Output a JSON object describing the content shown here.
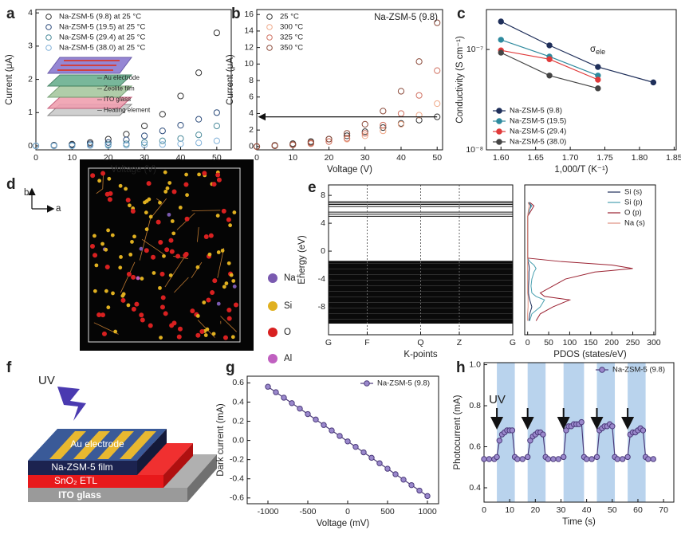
{
  "chart_data": [
    {
      "type": "scatter",
      "panel_label": "a",
      "x_label": "Voltage (V)",
      "y_label": "Current (μA)",
      "xlim": [
        0,
        54
      ],
      "ylim": [
        -0.12,
        4.1
      ],
      "xticks": [
        0,
        10,
        20,
        30,
        40,
        50
      ],
      "yticks": [
        0,
        1,
        2,
        3,
        4
      ],
      "legend": "upper left",
      "marker": "open",
      "x": [
        0,
        5,
        10,
        15,
        20,
        25,
        30,
        35,
        40,
        45,
        50
      ],
      "series": [
        {
          "name": "Na-ZSM-5 (9.8) at 25 °C",
          "color": "#333333",
          "values": [
            0,
            0.02,
            0.05,
            0.1,
            0.2,
            0.35,
            0.6,
            0.95,
            1.5,
            2.2,
            3.4
          ]
        },
        {
          "name": "Na-ZSM-5 (19.5) at 25 °C",
          "color": "#2b4a7a",
          "values": [
            0,
            0.01,
            0.03,
            0.06,
            0.1,
            0.18,
            0.3,
            0.45,
            0.62,
            0.8,
            1.0
          ]
        },
        {
          "name": "Na-ZSM-5 (29.4) at 25 °C",
          "color": "#4a8a9a",
          "values": [
            0,
            0,
            0.01,
            0.02,
            0.04,
            0.06,
            0.1,
            0.15,
            0.22,
            0.33,
            0.6
          ]
        },
        {
          "name": "Na-ZSM-5 (38.0) at 25 °C",
          "color": "#7fb0d8",
          "values": [
            0,
            0,
            0,
            0.01,
            0.01,
            0.02,
            0.03,
            0.04,
            0.06,
            0.09,
            0.15
          ]
        }
      ],
      "inset_labels": [
        "Au electrode",
        "Zeolite film",
        "ITO glass",
        "Heating element"
      ]
    },
    {
      "type": "scatter",
      "panel_label": "b",
      "x_label": "Voltage (V)",
      "y_label": "Current (μA)",
      "xlim": [
        0,
        51.5
      ],
      "ylim": [
        -0.4,
        16.6
      ],
      "xticks": [
        0,
        10,
        20,
        30,
        40,
        50
      ],
      "yticks": [
        0,
        2,
        4,
        6,
        8,
        10,
        12,
        14,
        16
      ],
      "legend": "upper left",
      "marker": "open",
      "annotation": "Na-ZSM-5 (9.8)",
      "arrow_level": 3.6,
      "x": [
        0,
        5,
        10,
        15,
        20,
        25,
        30,
        35,
        40,
        45,
        50
      ],
      "series": [
        {
          "name": "25 °C",
          "color": "#333333",
          "values": [
            0,
            0.15,
            0.35,
            0.6,
            0.9,
            1.3,
            1.8,
            2.3,
            2.8,
            3.2,
            3.6
          ]
        },
        {
          "name": "300 °C",
          "color": "#f0a888",
          "values": [
            0,
            0.1,
            0.25,
            0.4,
            0.6,
            0.9,
            1.3,
            1.9,
            2.7,
            3.8,
            5.2
          ]
        },
        {
          "name": "325 °C",
          "color": "#d07060",
          "values": [
            0,
            0.1,
            0.2,
            0.35,
            0.6,
            1.0,
            1.6,
            2.6,
            4.0,
            6.2,
            9.2
          ]
        },
        {
          "name": "350 °C",
          "color": "#8b4a3a",
          "values": [
            0,
            0.1,
            0.25,
            0.5,
            0.9,
            1.6,
            2.7,
            4.3,
            6.7,
            10.3,
            15
          ]
        }
      ]
    },
    {
      "type": "line",
      "panel_label": "c",
      "x_label": "1,000/T (K⁻¹)",
      "y_label": "Conductivity (S cm⁻¹)",
      "xlim": [
        1.579,
        1.853
      ],
      "ylim": [
        1e-08,
        2.5e-07
      ],
      "yscale": "log",
      "legend": "lower left",
      "marker": "filled",
      "annotation": "σ",
      "annotation_sub": "ele",
      "xticks": [
        {
          "value": 1.6,
          "label": "1.60"
        },
        {
          "value": 1.65,
          "label": "1.65"
        },
        {
          "value": 1.7,
          "label": "1.70"
        },
        {
          "value": 1.75,
          "label": "1.75"
        },
        {
          "value": 1.8,
          "label": "1.80"
        },
        {
          "value": 1.85,
          "label": "1.85"
        }
      ],
      "yticks": [
        {
          "value": 1e-08,
          "label": "10⁻⁸"
        },
        {
          "value": 1e-07,
          "label": "10⁻⁷"
        }
      ],
      "series": [
        {
          "name": "Na-ZSM-5 (9.8)",
          "color": "#1f2f5a",
          "x": [
            1.6,
            1.67,
            1.74,
            1.82
          ],
          "values": [
            1.9e-07,
            1.1e-07,
            6.7e-08,
            4.7e-08
          ]
        },
        {
          "name": "Na-ZSM-5 (19.5)",
          "color": "#2e8a9e",
          "x": [
            1.6,
            1.67,
            1.74
          ],
          "values": [
            1.25e-07,
            8.5e-08,
            5.5e-08
          ]
        },
        {
          "name": "Na-ZSM-5 (29.4)",
          "color": "#e03a3a",
          "x": [
            1.6,
            1.67,
            1.74
          ],
          "values": [
            9.8e-08,
            8e-08,
            5e-08
          ]
        },
        {
          "name": "Na-ZSM-5 (38.0)",
          "color": "#444444",
          "x": [
            1.6,
            1.67,
            1.74
          ],
          "values": [
            9.3e-08,
            5.5e-08,
            4.1e-08
          ]
        }
      ]
    },
    {
      "type": "band",
      "panel_label": "e",
      "x_label": "K-points",
      "y_label": "Energy (eV)",
      "xlim": [
        0,
        1
      ],
      "ylim": [
        -12,
        9.5
      ],
      "yticks": [
        -8,
        -4,
        0,
        4,
        8
      ],
      "xticks": [
        {
          "value": 0,
          "label": "G"
        },
        {
          "value": 0.21,
          "label": "F"
        },
        {
          "value": 0.5,
          "label": "Q"
        },
        {
          "value": 0.71,
          "label": "Z"
        },
        {
          "value": 1,
          "label": "G"
        }
      ],
      "conduction_bands": [
        5.0,
        5.3,
        5.6,
        6.4,
        6.7,
        6.9,
        7.1
      ],
      "valence_band": {
        "top": -1.4,
        "bottom": -10.4
      }
    },
    {
      "type": "line",
      "orientation": "horizontal",
      "x_label": "PDOS (states/eV)",
      "xlim": [
        -7,
        304
      ],
      "ylim": [
        -12,
        9.5
      ],
      "xticks": [
        0,
        50,
        100,
        150,
        200,
        250,
        300
      ],
      "legend": "upper right",
      "y": [
        -10,
        -9,
        -8,
        -7,
        -6.5,
        -6,
        -5,
        -4,
        -3,
        -2.5,
        -2,
        -1.5,
        -1,
        0,
        4,
        5,
        6,
        6.5,
        7
      ],
      "series": [
        {
          "name": "Si (s)",
          "color": "#1f2f5a",
          "values": [
            3,
            5,
            10,
            5,
            3,
            2,
            2,
            3,
            3,
            4,
            3,
            1,
            0,
            0,
            0,
            0,
            5,
            8,
            2
          ]
        },
        {
          "name": "Si (p)",
          "color": "#4aa0b0",
          "values": [
            5,
            10,
            30,
            40,
            20,
            10,
            8,
            10,
            15,
            20,
            15,
            5,
            0,
            0,
            0,
            0,
            5,
            10,
            3
          ]
        },
        {
          "name": "O (p)",
          "color": "#9a2030",
          "values": [
            20,
            30,
            60,
            100,
            40,
            30,
            60,
            90,
            160,
            250,
            200,
            80,
            0,
            0,
            0,
            0,
            10,
            15,
            5
          ]
        },
        {
          "name": "Na (s)",
          "color": "#e09080",
          "values": [
            0,
            0,
            1,
            1,
            1,
            0,
            0,
            0,
            0,
            0,
            0,
            0,
            0,
            0,
            0,
            0,
            2,
            4,
            1
          ]
        }
      ]
    },
    {
      "type": "line",
      "panel_label": "g",
      "x_label": "Voltage (mV)",
      "y_label": "Dark current (mA)",
      "xlim": [
        -1260,
        1140
      ],
      "ylim": [
        -0.66,
        0.67
      ],
      "legend": "upper right",
      "marker": "filled",
      "xticks": [
        -1000,
        -500,
        0,
        500,
        1000
      ],
      "yticks": [
        -0.6,
        -0.4,
        -0.2,
        {
          "value": 0,
          "label": "0.0"
        },
        0.2,
        0.4,
        0.6
      ],
      "x": [
        -1000,
        -900,
        -800,
        -700,
        -600,
        -500,
        -400,
        -300,
        -200,
        -100,
        0,
        100,
        200,
        300,
        400,
        500,
        600,
        700,
        800,
        900,
        1000
      ],
      "series": [
        {
          "name": "Na-ZSM-5 (9.8)",
          "color": "#4b3a7a",
          "values": [
            0.56,
            0.503,
            0.446,
            0.389,
            0.332,
            0.275,
            0.218,
            0.161,
            0.104,
            0.047,
            -0.01,
            -0.067,
            -0.124,
            -0.181,
            -0.238,
            -0.295,
            -0.352,
            -0.409,
            -0.466,
            -0.523,
            -0.58
          ]
        }
      ]
    },
    {
      "type": "line",
      "panel_label": "h",
      "x_label": "Time (s)",
      "y_label": "Photocurrent (mA)",
      "xlim": [
        0,
        74
      ],
      "ylim": [
        0.33,
        1.01
      ],
      "legend": "upper right",
      "marker": "filled",
      "annotation": "UV",
      "xticks": [
        0,
        10,
        20,
        30,
        40,
        50,
        60,
        70
      ],
      "yticks": [
        0.4,
        0.6,
        0.8,
        {
          "value": 1,
          "label": "1.0"
        }
      ],
      "shaded": [
        [
          5,
          12
        ],
        [
          17,
          24
        ],
        [
          31,
          39
        ],
        [
          44,
          51
        ],
        [
          56,
          63
        ]
      ],
      "x": [
        0,
        2,
        4,
        5,
        6,
        7,
        8,
        9,
        10,
        11,
        12,
        13,
        15,
        17,
        18,
        19,
        20,
        21,
        22,
        23,
        24,
        25,
        27,
        29,
        31,
        32,
        33,
        34,
        35,
        36,
        37,
        38,
        39,
        40,
        42,
        44,
        45,
        46,
        47,
        48,
        49,
        50,
        51,
        52,
        54,
        56,
        57,
        58,
        59,
        60,
        61,
        62,
        63,
        64,
        66
      ],
      "series": [
        {
          "name": "Na-ZSM-5 (9.8)",
          "color": "#4b3a7a",
          "values": [
            0.54,
            0.54,
            0.54,
            0.55,
            0.63,
            0.66,
            0.67,
            0.68,
            0.68,
            0.68,
            0.55,
            0.54,
            0.54,
            0.55,
            0.63,
            0.65,
            0.66,
            0.67,
            0.67,
            0.66,
            0.55,
            0.54,
            0.54,
            0.54,
            0.55,
            0.68,
            0.7,
            0.7,
            0.71,
            0.71,
            0.71,
            0.72,
            0.55,
            0.54,
            0.54,
            0.55,
            0.68,
            0.69,
            0.7,
            0.7,
            0.71,
            0.7,
            0.55,
            0.54,
            0.54,
            0.55,
            0.66,
            0.67,
            0.67,
            0.68,
            0.69,
            0.68,
            0.55,
            0.54,
            0.54
          ]
        }
      ]
    }
  ],
  "structure": {
    "panel_label": "d",
    "axes": [
      "b",
      "a"
    ],
    "legend": [
      "Na⁺",
      "Si",
      "O",
      "Al"
    ]
  },
  "device": {
    "panel_label": "f",
    "labels": [
      "UV",
      "Au electrode",
      "Na-ZSM-5 film",
      "SnO₂ ETL",
      "ITO glass"
    ]
  }
}
